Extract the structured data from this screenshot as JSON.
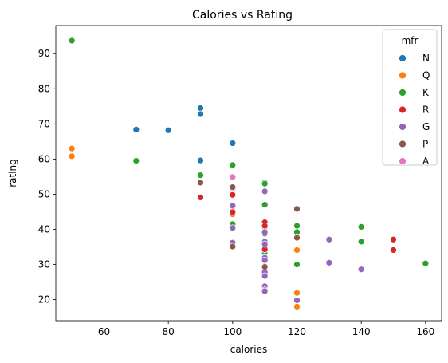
{
  "chart_data": {
    "type": "scatter",
    "title": "Calories vs Rating",
    "xlabel": "calories",
    "ylabel": "rating",
    "xlim": [
      45,
      165
    ],
    "ylim": [
      14,
      98
    ],
    "x_ticks": [
      60,
      80,
      100,
      120,
      140,
      160
    ],
    "y_ticks": [
      20,
      30,
      40,
      50,
      60,
      70,
      80,
      90
    ],
    "grid": false,
    "legend_title": "mfr",
    "legend_position": "top-right",
    "series": [
      {
        "name": "N",
        "color": "#1f77b4",
        "points": [
          [
            70,
            68.4
          ],
          [
            80,
            68.2
          ],
          [
            90,
            74.5
          ],
          [
            90,
            72.8
          ],
          [
            90,
            59.4
          ],
          [
            90,
            59.6
          ],
          [
            100,
            64.5
          ]
        ]
      },
      {
        "name": "Q",
        "color": "#ff7f0e",
        "points": [
          [
            50,
            63.0
          ],
          [
            50,
            60.8
          ],
          [
            100,
            45.3
          ],
          [
            100,
            44.3
          ],
          [
            120,
            34.1
          ],
          [
            120,
            21.9
          ],
          [
            120,
            18.0
          ],
          [
            110,
            28.5
          ]
        ]
      },
      {
        "name": "K",
        "color": "#2ca02c",
        "points": [
          [
            50,
            93.7
          ],
          [
            70,
            59.5
          ],
          [
            90,
            55.4
          ],
          [
            100,
            58.3
          ],
          [
            100,
            41.5
          ],
          [
            110,
            53.4
          ],
          [
            110,
            53.0
          ],
          [
            110,
            47.0
          ],
          [
            110,
            40.6
          ],
          [
            110,
            38.8
          ],
          [
            110,
            35.3
          ],
          [
            110,
            33.9
          ],
          [
            110,
            33.0
          ],
          [
            110,
            32.2
          ],
          [
            110,
            31.4
          ],
          [
            110,
            31.1
          ],
          [
            120,
            41.0
          ],
          [
            120,
            39.2
          ],
          [
            120,
            30.0
          ],
          [
            140,
            40.7
          ],
          [
            140,
            36.5
          ],
          [
            160,
            30.3
          ]
        ]
      },
      {
        "name": "R",
        "color": "#d62728",
        "points": [
          [
            90,
            49.1
          ],
          [
            100,
            49.8
          ],
          [
            100,
            44.9
          ],
          [
            110,
            42.0
          ],
          [
            110,
            41.0
          ],
          [
            110,
            34.3
          ],
          [
            150,
            37.1
          ],
          [
            150,
            34.1
          ]
        ]
      },
      {
        "name": "G",
        "color": "#9467bd",
        "points": [
          [
            100,
            51.6
          ],
          [
            100,
            46.7
          ],
          [
            100,
            40.4
          ],
          [
            100,
            36.2
          ],
          [
            110,
            50.8
          ],
          [
            110,
            39.2
          ],
          [
            110,
            36.5
          ],
          [
            110,
            35.8
          ],
          [
            110,
            31.9
          ],
          [
            110,
            31.2
          ],
          [
            110,
            29.5
          ],
          [
            110,
            28.0
          ],
          [
            110,
            27.8
          ],
          [
            110,
            26.7
          ],
          [
            110,
            23.8
          ],
          [
            110,
            22.7
          ],
          [
            110,
            22.4
          ],
          [
            120,
            19.8
          ],
          [
            130,
            37.1
          ],
          [
            130,
            30.5
          ],
          [
            140,
            28.6
          ]
        ]
      },
      {
        "name": "P",
        "color": "#8c564b",
        "points": [
          [
            90,
            53.3
          ],
          [
            100,
            52.0
          ],
          [
            100,
            35.1
          ],
          [
            110,
            29.3
          ],
          [
            120,
            45.8
          ],
          [
            120,
            37.8
          ],
          [
            120,
            37.6
          ]
        ]
      },
      {
        "name": "A",
        "color": "#e377c2",
        "points": [
          [
            100,
            54.9
          ]
        ]
      }
    ]
  }
}
